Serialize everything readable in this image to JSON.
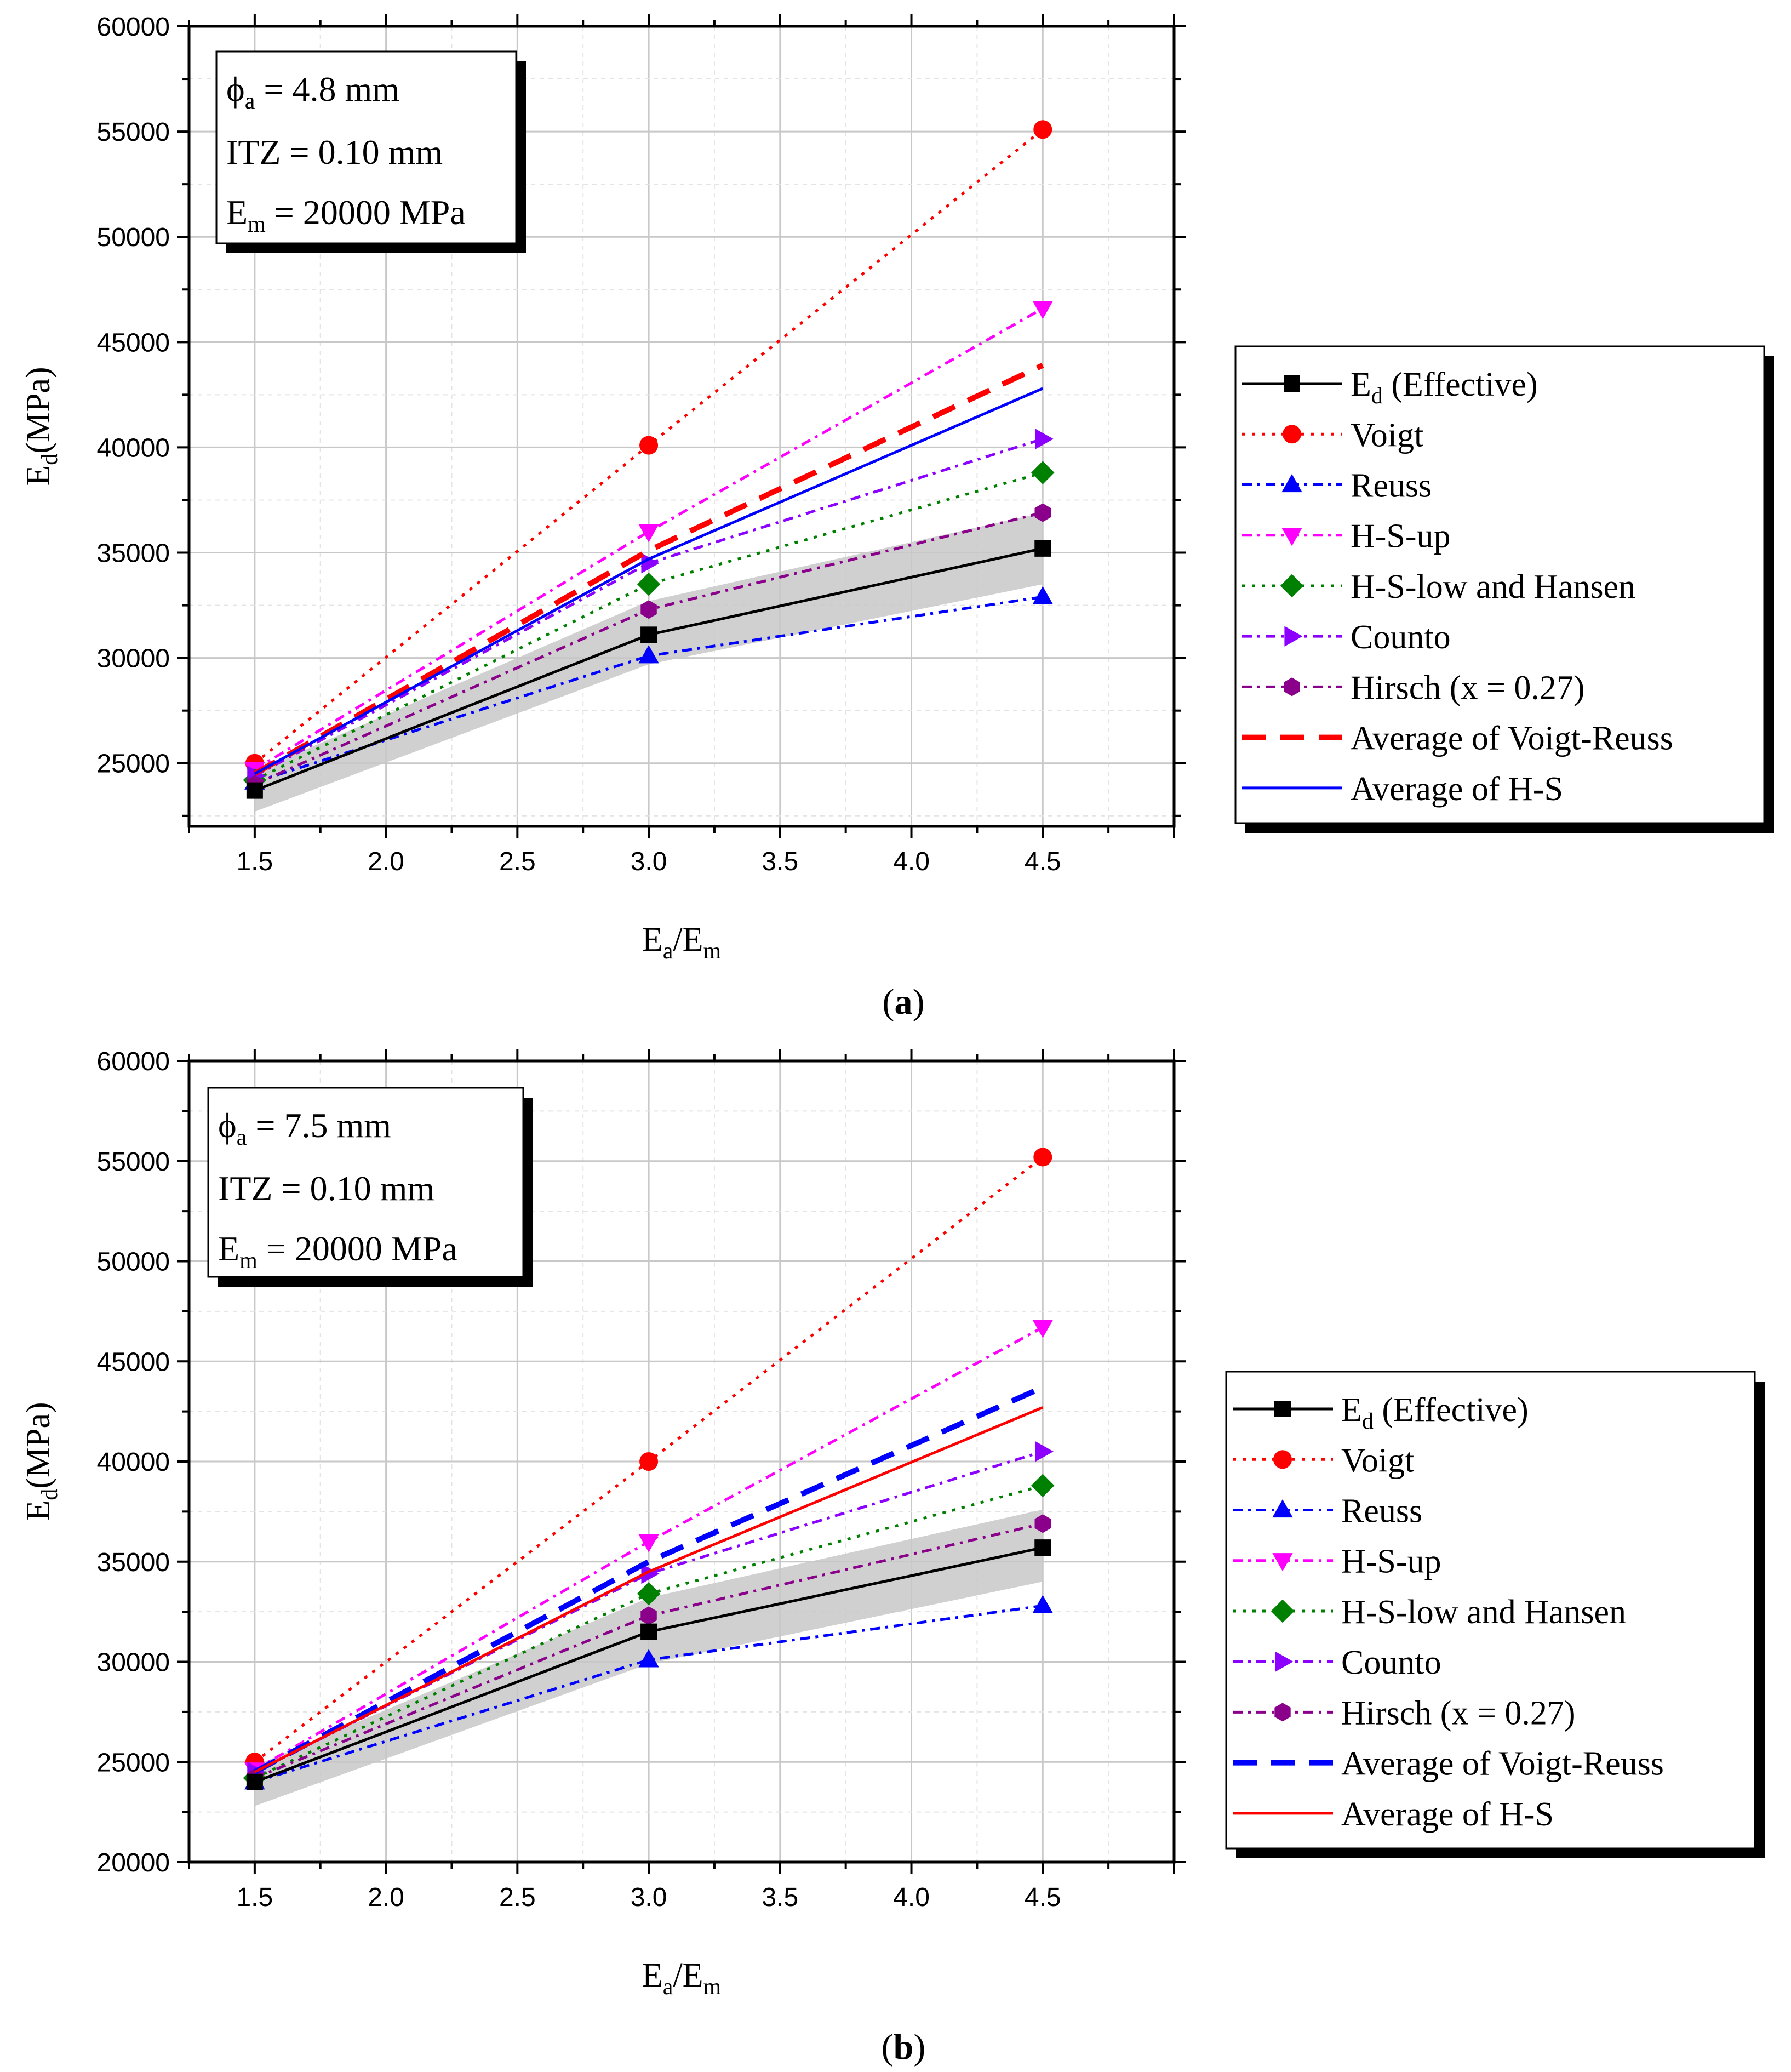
{
  "chart_data": [
    {
      "panel": "a",
      "panel_label": "a",
      "type": "line",
      "xlabel": "Ea/Em",
      "ylabel": "Ed (MPa)",
      "xlim": [
        1.25,
        5.0
      ],
      "ylim": [
        22000,
        60000
      ],
      "x_ticks": [
        "1.5",
        "2.0",
        "2.5",
        "3.0",
        "3.5",
        "4.0",
        "4.5"
      ],
      "y_ticks": [
        "25000",
        "30000",
        "35000",
        "40000",
        "45000",
        "50000",
        "55000",
        "60000"
      ],
      "x": [
        1.5,
        3.0,
        4.5
      ],
      "info": {
        "phi": "ϕa = 4.8 mm",
        "itz": "ITZ = 0.10 mm",
        "em": "Em = 20000 MPa"
      },
      "band": {
        "lower": [
          22700,
          29700,
          33500
        ],
        "upper": [
          24600,
          32700,
          36900
        ]
      },
      "series": [
        {
          "name": "Ed (Effective)",
          "values": [
            23700,
            31100,
            35200
          ],
          "color": "#000000",
          "style": "solid",
          "marker": "square"
        },
        {
          "name": "Voigt",
          "values": [
            25000,
            40100,
            55100
          ],
          "color": "#ff0000",
          "style": "dot",
          "marker": "circle"
        },
        {
          "name": "Reuss",
          "values": [
            24100,
            30100,
            32900
          ],
          "color": "#0000ff",
          "style": "dashdot",
          "marker": "triangle-up"
        },
        {
          "name": "H-S-up",
          "values": [
            24700,
            36000,
            46600
          ],
          "color": "#ff00ff",
          "style": "dashdot",
          "marker": "triangle-down"
        },
        {
          "name": "H-S-low and Hansen",
          "values": [
            24200,
            33500,
            38800
          ],
          "color": "#008000",
          "style": "dot",
          "marker": "diamond"
        },
        {
          "name": "Counto",
          "values": [
            24400,
            34500,
            40400
          ],
          "color": "#8b00ff",
          "style": "dashdot",
          "marker": "triangle-right"
        },
        {
          "name": "Hirsch (x = 0.27)",
          "values": [
            24000,
            32300,
            36900
          ],
          "color": "#8b008b",
          "style": "dashdot",
          "marker": "hexagon"
        },
        {
          "name": "Average of Voigt-Reuss",
          "values": [
            24500,
            35100,
            43900
          ],
          "color": "#ff0000",
          "style": "dash",
          "marker": "none"
        },
        {
          "name": "Average of H-S",
          "values": [
            24500,
            34700,
            42800
          ],
          "color": "#0000ff",
          "style": "solid",
          "marker": "none"
        }
      ]
    },
    {
      "panel": "b",
      "panel_label": "b",
      "type": "line",
      "xlabel": "Ea/Em",
      "ylabel": "Ed (MPa)",
      "xlim": [
        1.25,
        5.0
      ],
      "ylim": [
        20000,
        60000
      ],
      "x_ticks": [
        "1.5",
        "2.0",
        "2.5",
        "3.0",
        "3.5",
        "4.0",
        "4.5"
      ],
      "y_ticks": [
        "20000",
        "25000",
        "30000",
        "35000",
        "40000",
        "45000",
        "50000",
        "55000",
        "60000"
      ],
      "x": [
        1.5,
        3.0,
        4.5
      ],
      "info": {
        "phi": "ϕa = 7.5 mm",
        "itz": "ITZ = 0.10 mm",
        "em": "Em = 20000 MPa"
      },
      "band": {
        "lower": [
          22800,
          29900,
          34000
        ],
        "upper": [
          24800,
          33200,
          37600
        ]
      },
      "series": [
        {
          "name": "Ed (Effective)",
          "values": [
            24000,
            31500,
            35700
          ],
          "color": "#000000",
          "style": "solid",
          "marker": "square"
        },
        {
          "name": "Voigt",
          "values": [
            25000,
            40000,
            55200
          ],
          "color": "#ff0000",
          "style": "dot",
          "marker": "circle"
        },
        {
          "name": "Reuss",
          "values": [
            24000,
            30100,
            32800
          ],
          "color": "#0000ff",
          "style": "dashdot",
          "marker": "triangle-up"
        },
        {
          "name": "H-S-up",
          "values": [
            24600,
            36000,
            46700
          ],
          "color": "#ff00ff",
          "style": "dashdot",
          "marker": "triangle-down"
        },
        {
          "name": "H-S-low and Hansen",
          "values": [
            24200,
            33400,
            38800
          ],
          "color": "#008000",
          "style": "dot",
          "marker": "diamond"
        },
        {
          "name": "Counto",
          "values": [
            24500,
            34400,
            40500
          ],
          "color": "#8b00ff",
          "style": "dashdot",
          "marker": "triangle-right"
        },
        {
          "name": "Hirsch (x = 0.27)",
          "values": [
            24200,
            32300,
            36900
          ],
          "color": "#8b008b",
          "style": "dashdot",
          "marker": "hexagon"
        },
        {
          "name": "Average of Voigt-Reuss",
          "values": [
            24500,
            35000,
            43700
          ],
          "color": "#0000ff",
          "style": "dash",
          "marker": "none"
        },
        {
          "name": "Average of H-S",
          "values": [
            24500,
            34500,
            42700
          ],
          "color": "#ff0000",
          "style": "solid",
          "marker": "none"
        }
      ]
    }
  ]
}
